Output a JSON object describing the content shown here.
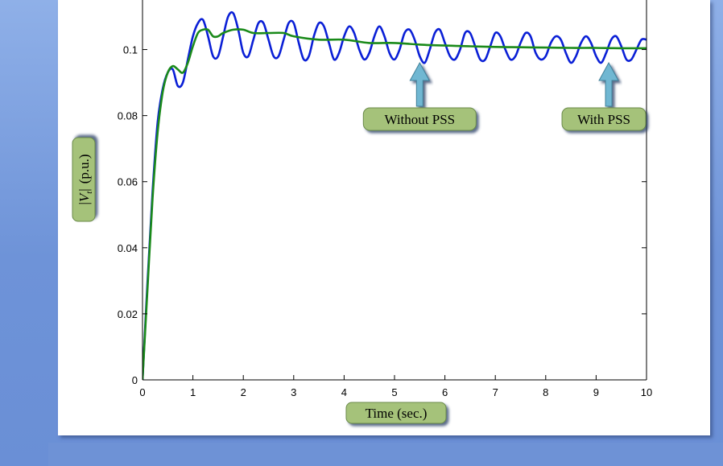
{
  "chart_data": {
    "type": "line",
    "xlabel": "Time (sec.)",
    "ylabel": "|V_t| (p.u.)",
    "ylabel_parts": {
      "open": "|",
      "var": "V",
      "sub": "t",
      "close": "|",
      "unit": "(p.u.)"
    },
    "xlim": [
      0,
      10
    ],
    "ylim": [
      0,
      0.115
    ],
    "x_ticks": [
      0,
      1,
      2,
      3,
      4,
      5,
      6,
      7,
      8,
      9,
      10
    ],
    "y_ticks": [
      0,
      0.02,
      0.04,
      0.06,
      0.08,
      0.1
    ],
    "y_tick_labels": [
      "0",
      "0.02",
      "0.04",
      "0.06",
      "0.08",
      "0.1"
    ],
    "grid": false,
    "series": [
      {
        "name": "Without PSS",
        "color": "#0a1fd6",
        "x": [
          0,
          0.1,
          0.2,
          0.3,
          0.4,
          0.5,
          0.6,
          0.7,
          0.8,
          0.9,
          1.0,
          1.1,
          1.2,
          1.3,
          1.4,
          1.5,
          1.6,
          1.7,
          1.8,
          1.9,
          2.0,
          2.1,
          2.2,
          2.3,
          2.4,
          2.5,
          2.6,
          2.7,
          2.8,
          2.9,
          3.0,
          3.1,
          3.2,
          3.3,
          3.4,
          3.5,
          3.6,
          3.7,
          3.8,
          3.9,
          4.0,
          4.1,
          4.2,
          4.3,
          4.4,
          4.5,
          4.6,
          4.7,
          4.8,
          4.9,
          5.0,
          5.1,
          5.2,
          5.3,
          5.4,
          5.5,
          5.6,
          5.7,
          5.8,
          5.9,
          6.0,
          6.1,
          6.2,
          6.3,
          6.4,
          6.5,
          6.6,
          6.7,
          6.8,
          6.9,
          7.0,
          7.1,
          7.2,
          7.3,
          7.4,
          7.5,
          7.6,
          7.7,
          7.8,
          7.9,
          8.0,
          8.1,
          8.2,
          8.3,
          8.4,
          8.5,
          8.6,
          8.7,
          8.8,
          8.9,
          9.0,
          9.1,
          9.2,
          9.3,
          9.4,
          9.5,
          9.6,
          9.7,
          9.8,
          9.9,
          10.0
        ],
        "values": [
          0.0,
          0.03,
          0.057,
          0.078,
          0.088,
          0.093,
          0.094,
          0.089,
          0.09,
          0.097,
          0.104,
          0.108,
          0.109,
          0.104,
          0.098,
          0.098,
          0.104,
          0.11,
          0.111,
          0.106,
          0.099,
          0.098,
          0.103,
          0.108,
          0.108,
          0.103,
          0.098,
          0.098,
          0.103,
          0.108,
          0.108,
          0.102,
          0.097,
          0.098,
          0.104,
          0.108,
          0.107,
          0.102,
          0.097,
          0.099,
          0.104,
          0.107,
          0.105,
          0.1,
          0.097,
          0.099,
          0.104,
          0.107,
          0.104,
          0.099,
          0.097,
          0.1,
          0.105,
          0.106,
          0.103,
          0.098,
          0.096,
          0.1,
          0.105,
          0.106,
          0.102,
          0.098,
          0.097,
          0.1,
          0.105,
          0.105,
          0.101,
          0.097,
          0.097,
          0.101,
          0.105,
          0.104,
          0.1,
          0.097,
          0.098,
          0.102,
          0.105,
          0.104,
          0.099,
          0.097,
          0.098,
          0.102,
          0.104,
          0.103,
          0.099,
          0.096,
          0.098,
          0.102,
          0.104,
          0.102,
          0.098,
          0.096,
          0.099,
          0.103,
          0.104,
          0.101,
          0.097,
          0.097,
          0.1,
          0.103,
          0.103
        ]
      },
      {
        "name": "With PSS",
        "color": "#1a8a1a",
        "x": [
          0,
          0.1,
          0.2,
          0.3,
          0.4,
          0.5,
          0.6,
          0.7,
          0.8,
          0.9,
          1.0,
          1.1,
          1.2,
          1.3,
          1.4,
          1.5,
          1.6,
          1.8,
          2.0,
          2.2,
          2.5,
          2.8,
          3.0,
          3.5,
          4.0,
          4.5,
          5.0,
          5.5,
          6.0,
          6.5,
          7.0,
          7.5,
          8.0,
          8.5,
          9.0,
          9.5,
          10.0
        ],
        "values": [
          0.0,
          0.028,
          0.055,
          0.075,
          0.087,
          0.093,
          0.095,
          0.094,
          0.093,
          0.096,
          0.101,
          0.105,
          0.106,
          0.106,
          0.104,
          0.104,
          0.105,
          0.106,
          0.106,
          0.105,
          0.105,
          0.105,
          0.104,
          0.103,
          0.103,
          0.102,
          0.102,
          0.1015,
          0.1012,
          0.101,
          0.1008,
          0.1007,
          0.1006,
          0.1005,
          0.1005,
          0.1004,
          0.1004
        ]
      }
    ],
    "annotations": [
      {
        "text": "Without PSS",
        "arrow_to_x": 5.5
      },
      {
        "text": "With PSS",
        "arrow_to_x": 9.25
      }
    ],
    "colors": {
      "frame": "#7a9ce0",
      "callout_fill": "#a5c27a",
      "arrow_fill": "#6fb7d2"
    }
  }
}
